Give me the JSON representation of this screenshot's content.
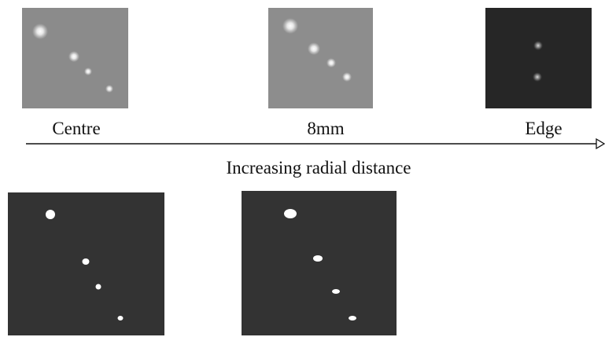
{
  "labels": [
    "Centre",
    "8mm",
    "Edge"
  ],
  "axis_label": "Increasing radial distance"
}
